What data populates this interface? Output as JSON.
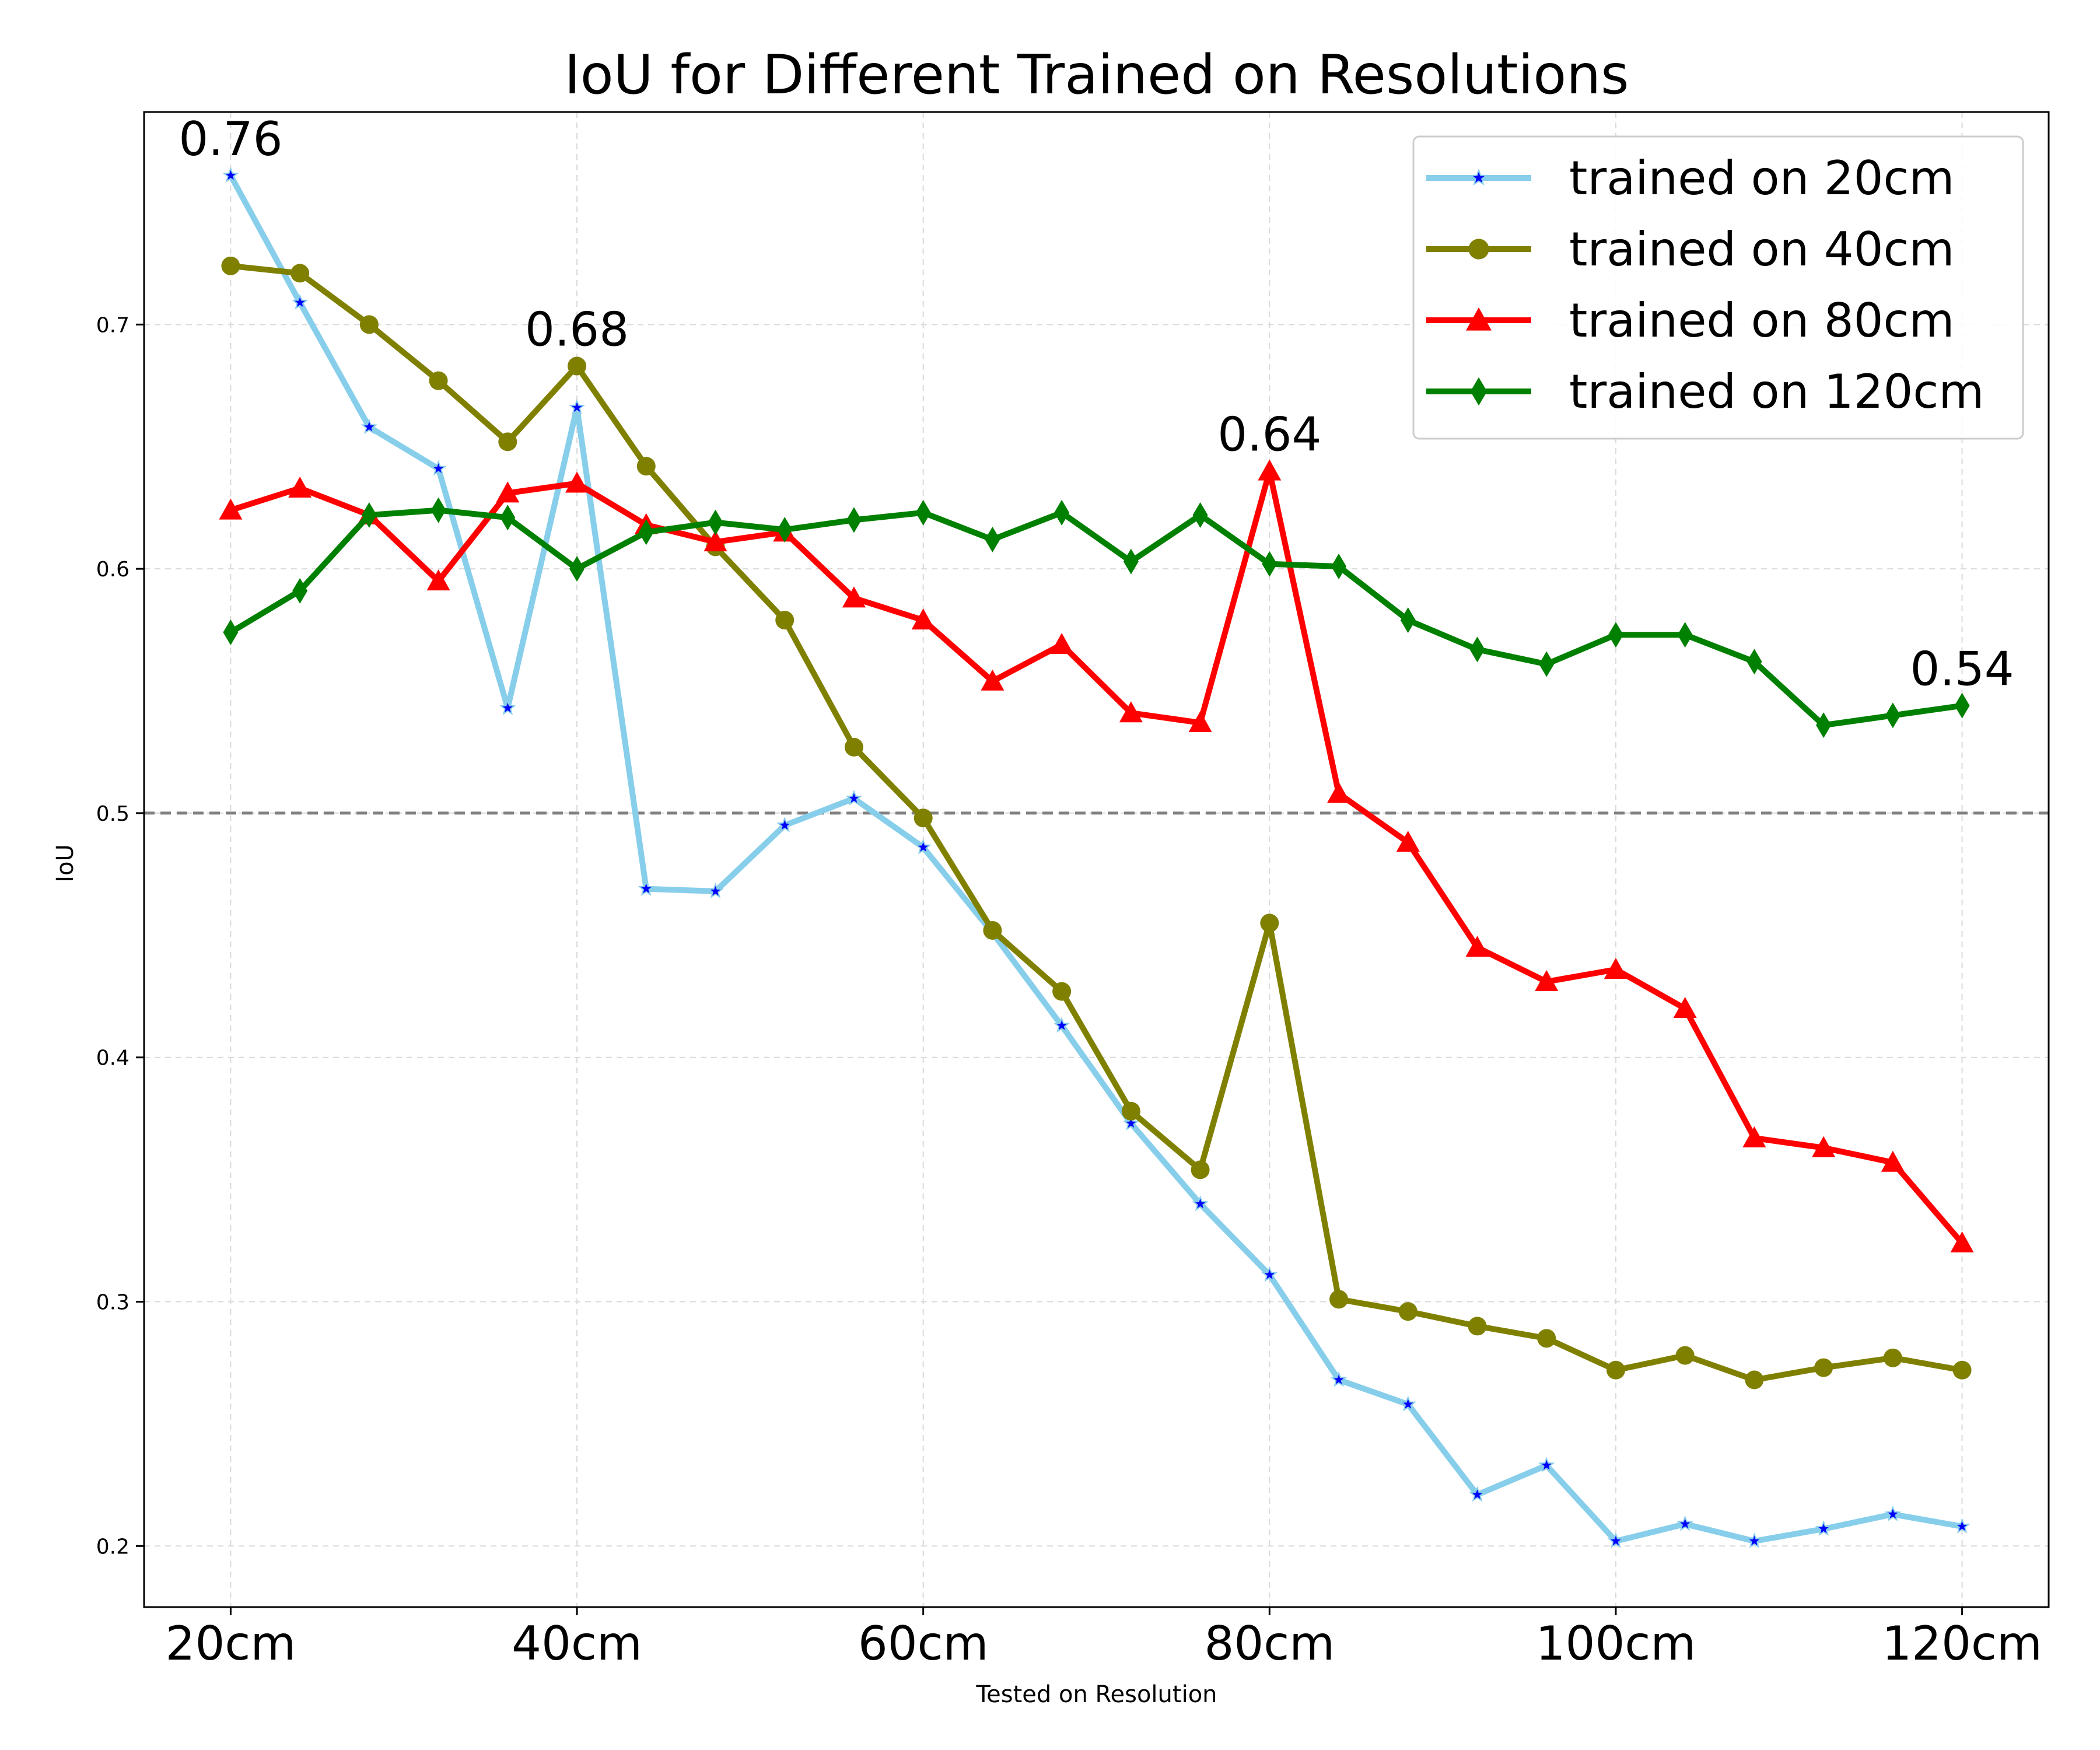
{
  "chart_data": {
    "type": "line",
    "title": "IoU for Different Trained on Resolutions",
    "xlabel": "Tested on Resolution",
    "ylabel": "IoU",
    "x": [
      20,
      24,
      28,
      32,
      36,
      40,
      44,
      48,
      52,
      56,
      60,
      64,
      68,
      72,
      76,
      80,
      84,
      88,
      92,
      96,
      100,
      104,
      108,
      112,
      116,
      120
    ],
    "xlim": [
      15,
      125
    ],
    "ylim": [
      0.175,
      0.787
    ],
    "x_ticks": [
      20,
      40,
      60,
      80,
      100,
      120
    ],
    "x_tick_labels": [
      "20cm",
      "40cm",
      "60cm",
      "80cm",
      "100cm",
      "120cm"
    ],
    "y_ticks": [
      0.2,
      0.3,
      0.4,
      0.5,
      0.6,
      0.7
    ],
    "y_tick_labels": [
      "0.2",
      "0.3",
      "0.4",
      "0.5",
      "0.6",
      "0.7"
    ],
    "grid": true,
    "legend_position": "top-right",
    "reference_line": {
      "y": 0.5,
      "style": "dashed",
      "color": "#808080"
    },
    "series": [
      {
        "name": "trained on 20cm",
        "color": "#87ceeb",
        "marker": "star",
        "marker_color": "#0000ff",
        "values": [
          0.761,
          0.709,
          0.658,
          0.641,
          0.543,
          0.666,
          0.469,
          0.468,
          0.495,
          0.506,
          0.486,
          0.451,
          0.413,
          0.373,
          0.34,
          0.311,
          0.268,
          0.258,
          0.221,
          0.233,
          0.202,
          0.209,
          0.202,
          0.207,
          0.213,
          0.208
        ]
      },
      {
        "name": "trained on 40cm",
        "color": "#808000",
        "marker": "circle",
        "marker_color": "#808000",
        "values": [
          0.724,
          0.721,
          0.7,
          0.677,
          0.652,
          0.683,
          0.642,
          0.609,
          0.579,
          0.527,
          0.498,
          0.452,
          0.427,
          0.378,
          0.354,
          0.455,
          0.301,
          0.296,
          0.29,
          0.285,
          0.272,
          0.278,
          0.268,
          0.273,
          0.277,
          0.272
        ]
      },
      {
        "name": "trained on 80cm",
        "color": "#ff0000",
        "marker": "triangle",
        "marker_color": "#ff0000",
        "values": [
          0.624,
          0.633,
          0.622,
          0.595,
          0.631,
          0.635,
          0.618,
          0.611,
          0.615,
          0.588,
          0.579,
          0.554,
          0.569,
          0.541,
          0.537,
          0.64,
          0.508,
          0.488,
          0.445,
          0.431,
          0.436,
          0.42,
          0.367,
          0.363,
          0.357,
          0.324
        ]
      },
      {
        "name": "trained on 120cm",
        "color": "#008000",
        "marker": "diamond",
        "marker_color": "#008000",
        "values": [
          0.574,
          0.591,
          0.622,
          0.624,
          0.621,
          0.6,
          0.615,
          0.619,
          0.616,
          0.62,
          0.623,
          0.612,
          0.623,
          0.603,
          0.622,
          0.602,
          0.601,
          0.579,
          0.567,
          0.561,
          0.573,
          0.573,
          0.562,
          0.536,
          0.54,
          0.544
        ]
      }
    ],
    "annotations": [
      {
        "text": "0.76",
        "x": 20,
        "y": 0.761
      },
      {
        "text": "0.68",
        "x": 40,
        "y": 0.683
      },
      {
        "text": "0.64",
        "x": 80,
        "y": 0.64
      },
      {
        "text": "0.54",
        "x": 120,
        "y": 0.544
      }
    ]
  }
}
